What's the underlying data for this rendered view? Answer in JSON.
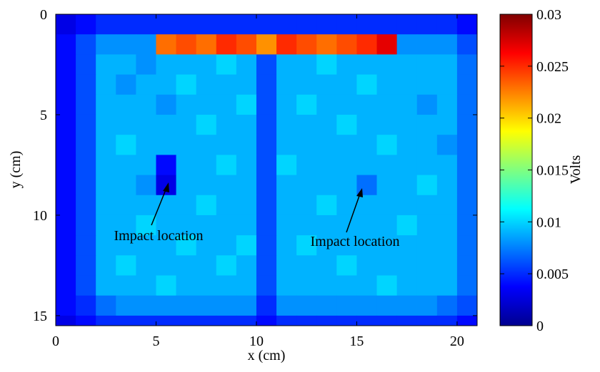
{
  "chart_data": {
    "type": "heatmap",
    "xlabel": "x (cm)",
    "ylabel": "y (cm)",
    "xlim": [
      0,
      21
    ],
    "ylim": [
      0,
      15.5
    ],
    "y_reversed": true,
    "xticks": [
      0,
      5,
      10,
      15,
      20
    ],
    "yticks": [
      0,
      5,
      10,
      15
    ],
    "x_bins": [
      0,
      1,
      2,
      3,
      4,
      5,
      6,
      7,
      8,
      9,
      10,
      11,
      12,
      13,
      14,
      15,
      16,
      17,
      18,
      19,
      20,
      21
    ],
    "y_bins": [
      0,
      1,
      2,
      3,
      4,
      5,
      6,
      7,
      8,
      9,
      10,
      11,
      12,
      13,
      14,
      15,
      15.5
    ],
    "colormap": "jet",
    "clim": [
      0,
      0.03
    ],
    "cticks": [
      0,
      0.005,
      0.01,
      0.015,
      0.02,
      0.025,
      0.03
    ],
    "clabel": "Volts",
    "annotations": [
      {
        "text": "Impact location"
      },
      {
        "text": "Impact location"
      }
    ],
    "z": [
      [
        0.003,
        0.004,
        0.005,
        0.005,
        0.005,
        0.005,
        0.005,
        0.005,
        0.005,
        0.005,
        0.005,
        0.005,
        0.005,
        0.005,
        0.005,
        0.005,
        0.005,
        0.005,
        0.005,
        0.005,
        0.004
      ],
      [
        0.004,
        0.006,
        0.008,
        0.008,
        0.008,
        0.023,
        0.024,
        0.023,
        0.025,
        0.024,
        0.022,
        0.025,
        0.024,
        0.023,
        0.024,
        0.025,
        0.027,
        0.008,
        0.008,
        0.008,
        0.006
      ],
      [
        0.004,
        0.006,
        0.009,
        0.009,
        0.008,
        0.009,
        0.009,
        0.009,
        0.01,
        0.009,
        0.006,
        0.009,
        0.009,
        0.01,
        0.009,
        0.009,
        0.009,
        0.009,
        0.009,
        0.009,
        0.007
      ],
      [
        0.004,
        0.006,
        0.009,
        0.008,
        0.009,
        0.009,
        0.01,
        0.009,
        0.009,
        0.009,
        0.006,
        0.009,
        0.009,
        0.009,
        0.009,
        0.01,
        0.009,
        0.009,
        0.009,
        0.009,
        0.007
      ],
      [
        0.004,
        0.006,
        0.009,
        0.009,
        0.009,
        0.008,
        0.009,
        0.009,
        0.009,
        0.01,
        0.006,
        0.009,
        0.01,
        0.009,
        0.009,
        0.009,
        0.009,
        0.009,
        0.008,
        0.009,
        0.007
      ],
      [
        0.004,
        0.006,
        0.009,
        0.009,
        0.009,
        0.009,
        0.009,
        0.01,
        0.009,
        0.009,
        0.006,
        0.009,
        0.009,
        0.009,
        0.01,
        0.009,
        0.009,
        0.009,
        0.009,
        0.009,
        0.007
      ],
      [
        0.004,
        0.006,
        0.009,
        0.01,
        0.009,
        0.009,
        0.009,
        0.009,
        0.009,
        0.009,
        0.006,
        0.009,
        0.009,
        0.009,
        0.009,
        0.009,
        0.01,
        0.009,
        0.009,
        0.008,
        0.007
      ],
      [
        0.004,
        0.006,
        0.009,
        0.009,
        0.009,
        0.004,
        0.009,
        0.009,
        0.01,
        0.009,
        0.006,
        0.01,
        0.009,
        0.009,
        0.009,
        0.009,
        0.009,
        0.009,
        0.009,
        0.009,
        0.007
      ],
      [
        0.004,
        0.006,
        0.009,
        0.009,
        0.008,
        0.003,
        0.009,
        0.009,
        0.009,
        0.009,
        0.006,
        0.009,
        0.009,
        0.009,
        0.009,
        0.007,
        0.009,
        0.009,
        0.01,
        0.009,
        0.007
      ],
      [
        0.004,
        0.006,
        0.009,
        0.009,
        0.009,
        0.009,
        0.009,
        0.01,
        0.009,
        0.009,
        0.006,
        0.009,
        0.009,
        0.01,
        0.009,
        0.009,
        0.009,
        0.009,
        0.009,
        0.009,
        0.007
      ],
      [
        0.004,
        0.006,
        0.009,
        0.009,
        0.01,
        0.009,
        0.009,
        0.009,
        0.009,
        0.009,
        0.006,
        0.009,
        0.009,
        0.009,
        0.009,
        0.009,
        0.009,
        0.01,
        0.009,
        0.009,
        0.007
      ],
      [
        0.004,
        0.006,
        0.009,
        0.009,
        0.009,
        0.009,
        0.01,
        0.009,
        0.009,
        0.01,
        0.006,
        0.009,
        0.01,
        0.009,
        0.009,
        0.009,
        0.009,
        0.009,
        0.009,
        0.009,
        0.007
      ],
      [
        0.004,
        0.006,
        0.009,
        0.01,
        0.009,
        0.009,
        0.009,
        0.009,
        0.01,
        0.009,
        0.006,
        0.009,
        0.009,
        0.009,
        0.01,
        0.009,
        0.009,
        0.009,
        0.009,
        0.009,
        0.007
      ],
      [
        0.004,
        0.006,
        0.009,
        0.009,
        0.009,
        0.01,
        0.009,
        0.009,
        0.009,
        0.009,
        0.006,
        0.009,
        0.009,
        0.009,
        0.009,
        0.009,
        0.01,
        0.009,
        0.009,
        0.009,
        0.007
      ],
      [
        0.004,
        0.005,
        0.007,
        0.008,
        0.008,
        0.008,
        0.008,
        0.008,
        0.008,
        0.008,
        0.005,
        0.008,
        0.008,
        0.008,
        0.008,
        0.008,
        0.008,
        0.008,
        0.008,
        0.007,
        0.006
      ],
      [
        0.003,
        0.004,
        0.005,
        0.005,
        0.005,
        0.005,
        0.005,
        0.005,
        0.005,
        0.005,
        0.004,
        0.005,
        0.005,
        0.005,
        0.005,
        0.005,
        0.005,
        0.005,
        0.005,
        0.005,
        0.004
      ]
    ]
  }
}
